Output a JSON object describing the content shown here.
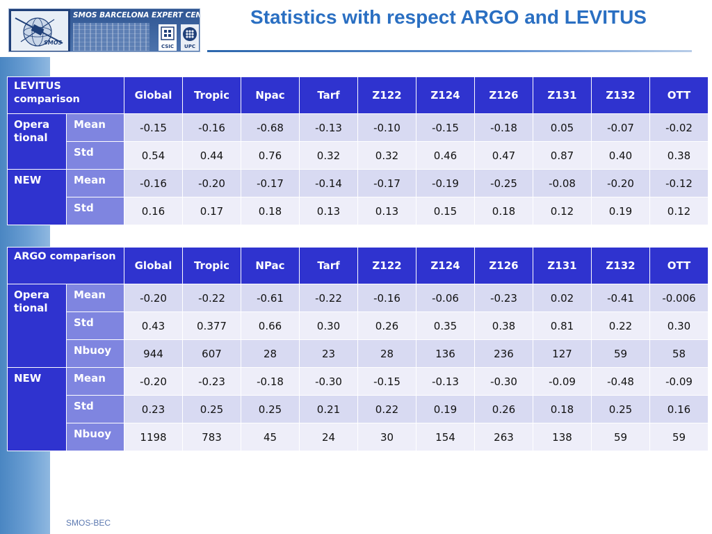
{
  "slide": {
    "title": "Statistics with respect ARGO and LEVITUS",
    "footer": "SMOS-BEC"
  },
  "logo": {
    "text": "SMOS BARCELONA EXPERT CENTRE",
    "smos": "SMOS",
    "csic": "CSIC",
    "upc": "UPC"
  },
  "colors": {
    "header_bg": "#2f33cf",
    "subheader_bg": "#7f85e0",
    "row_odd": "#d8daf2",
    "row_even": "#eeeef9",
    "title": "#2a6fc2"
  },
  "levitus_table": {
    "caption": "LEVITUS comparison",
    "columns": [
      "Global",
      "Tropic",
      "Npac",
      "Tarf",
      "Z122",
      "Z124",
      "Z126",
      "Z131",
      "Z132",
      "OTT"
    ],
    "groups": [
      {
        "name": "Operational",
        "name_lines": [
          "Opera",
          "tional"
        ],
        "rows": [
          {
            "label": "Mean",
            "values": [
              "-0.15",
              "-0.16",
              "-0.68",
              "-0.13",
              "-0.10",
              "-0.15",
              "-0.18",
              "0.05",
              "-0.07",
              "-0.02"
            ]
          },
          {
            "label": "Std",
            "values": [
              "0.54",
              "0.44",
              "0.76",
              "0.32",
              "0.32",
              "0.46",
              "0.47",
              "0.87",
              "0.40",
              "0.38"
            ]
          }
        ]
      },
      {
        "name": "NEW",
        "name_lines": [
          "NEW"
        ],
        "rows": [
          {
            "label": "Mean",
            "values": [
              "-0.16",
              "-0.20",
              "-0.17",
              "-0.14",
              "-0.17",
              "-0.19",
              "-0.25",
              "-0.08",
              "-0.20",
              "-0.12"
            ]
          },
          {
            "label": "Std",
            "values": [
              "0.16",
              "0.17",
              "0.18",
              "0.13",
              "0.13",
              "0.15",
              "0.18",
              "0.12",
              "0.19",
              "0.12"
            ]
          }
        ]
      }
    ]
  },
  "argo_table": {
    "caption": "ARGO comparison",
    "columns": [
      "Global",
      "Tropic",
      "NPac",
      "Tarf",
      "Z122",
      "Z124",
      "Z126",
      "Z131",
      "Z132",
      "OTT"
    ],
    "groups": [
      {
        "name": "Operational",
        "name_lines": [
          "Opera",
          "tional"
        ],
        "rows": [
          {
            "label": "Mean",
            "values": [
              "-0.20",
              "-0.22",
              "-0.61",
              "-0.22",
              "-0.16",
              "-0.06",
              "-0.23",
              "0.02",
              "-0.41",
              "-0.006"
            ]
          },
          {
            "label": "Std",
            "values": [
              "0.43",
              "0.377",
              "0.66",
              "0.30",
              "0.26",
              "0.35",
              "0.38",
              "0.81",
              "0.22",
              "0.30"
            ]
          },
          {
            "label": "Nbuoy",
            "values": [
              "944",
              "607",
              "28",
              "23",
              "28",
              "136",
              "236",
              "127",
              "59",
              "58"
            ]
          }
        ]
      },
      {
        "name": "NEW",
        "name_lines": [
          "NEW"
        ],
        "rows": [
          {
            "label": "Mean",
            "values": [
              "-0.20",
              "-0.23",
              "-0.18",
              "-0.30",
              "-0.15",
              "-0.13",
              "-0.30",
              "-0.09",
              "-0.48",
              "-0.09"
            ]
          },
          {
            "label": "Std",
            "values": [
              "0.23",
              "0.25",
              "0.25",
              "0.21",
              "0.22",
              "0.19",
              "0.26",
              "0.18",
              "0.25",
              "0.16"
            ]
          },
          {
            "label": "Nbuoy",
            "values": [
              "1198",
              "783",
              "45",
              "24",
              "30",
              "154",
              "263",
              "138",
              "59",
              "59"
            ]
          }
        ]
      }
    ]
  }
}
